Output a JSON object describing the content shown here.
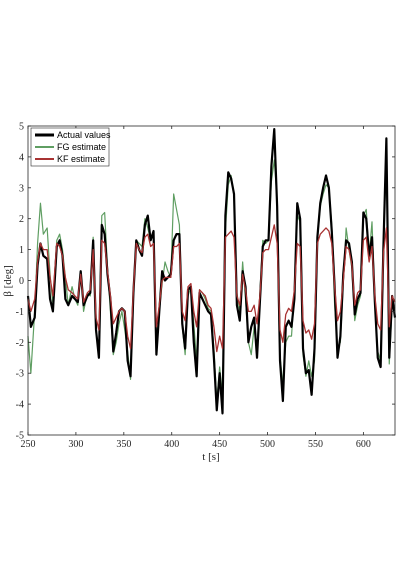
{
  "chart_data": {
    "type": "line",
    "xlabel": "t [s]",
    "ylabel": "β [deg]",
    "xlim": [
      250,
      633
    ],
    "ylim": [
      -5,
      5
    ],
    "xticks": [
      250,
      300,
      350,
      400,
      450,
      500,
      550,
      600
    ],
    "yticks": [
      -5,
      -4,
      -3,
      -2,
      -1,
      0,
      1,
      2,
      3,
      4,
      5
    ],
    "grid": false,
    "legend_position": "top-left",
    "series": [
      {
        "name": "Actual values",
        "color": "#000000",
        "x": [
          250,
          253,
          257,
          260,
          263,
          266,
          270,
          273,
          276,
          280,
          283,
          286,
          289,
          292,
          296,
          299,
          302,
          305,
          308,
          312,
          315,
          318,
          321,
          324,
          327,
          330,
          333,
          336,
          339,
          342,
          345,
          348,
          351,
          354,
          357,
          360,
          363,
          366,
          369,
          372,
          375,
          378,
          381,
          384,
          387,
          390,
          393,
          396,
          399,
          402,
          405,
          408,
          411,
          414,
          417,
          420,
          423,
          426,
          429,
          432,
          435,
          438,
          441,
          444,
          447,
          450,
          453,
          456,
          459,
          462,
          465,
          468,
          471,
          474,
          477,
          480,
          483,
          486,
          489,
          492,
          495,
          498,
          501,
          504,
          507,
          510,
          513,
          516,
          519,
          522,
          525,
          528,
          531,
          534,
          537,
          540,
          543,
          546,
          549,
          552,
          555,
          558,
          561,
          564,
          567,
          570,
          573,
          576,
          579,
          582,
          585,
          588,
          591,
          594,
          597,
          600,
          603,
          606,
          609,
          612,
          615,
          618,
          621,
          624,
          627,
          630,
          633
        ],
        "y": [
          -0.5,
          -1.5,
          -1.2,
          0.5,
          1.2,
          0.8,
          0.7,
          -0.6,
          -1.0,
          1.1,
          1.3,
          0.8,
          -0.6,
          -0.8,
          -0.5,
          -0.6,
          -0.7,
          0.3,
          -0.8,
          -0.5,
          -0.4,
          1.3,
          -1.6,
          -2.5,
          1.8,
          1.5,
          0.2,
          -0.6,
          -2.3,
          -1.7,
          -1.0,
          -0.9,
          -1.0,
          -2.6,
          -3.1,
          -0.4,
          1.3,
          1.0,
          0.8,
          1.8,
          2.1,
          1.3,
          1.6,
          -2.4,
          -1.0,
          0.3,
          0.0,
          0.1,
          0.2,
          1.3,
          1.5,
          1.5,
          -1.4,
          -2.2,
          -0.3,
          -0.2,
          -2.0,
          -3.1,
          -0.4,
          -0.6,
          -0.8,
          -1.0,
          -1.1,
          -2.5,
          -4.2,
          -3.0,
          -4.3,
          2.1,
          3.5,
          3.3,
          2.8,
          -0.8,
          -1.3,
          0.3,
          -0.2,
          -2.0,
          -1.5,
          -1.2,
          -2.5,
          -0.7,
          1.1,
          1.3,
          1.3,
          3.7,
          4.9,
          2.4,
          -2.6,
          -3.9,
          -1.5,
          -1.3,
          -1.5,
          -0.6,
          2.5,
          2.0,
          -2.2,
          -3.0,
          -2.9,
          -3.7,
          -2.2,
          1.4,
          2.5,
          3.0,
          3.4,
          3.0,
          1.6,
          -0.2,
          -2.5,
          -1.8,
          0.2,
          1.3,
          1.2,
          0.6,
          -1.1,
          -0.6,
          -0.4,
          2.2,
          2.0,
          0.8,
          1.4,
          -0.7,
          -2.5,
          -2.8,
          1.2,
          4.6,
          -2.5,
          -0.5,
          -1.2
        ]
      },
      {
        "name": "FG estimate",
        "color": "#5f9e62",
        "x": [
          250,
          253,
          257,
          260,
          263,
          266,
          270,
          273,
          276,
          280,
          283,
          286,
          289,
          292,
          296,
          299,
          302,
          305,
          308,
          312,
          315,
          318,
          321,
          324,
          327,
          330,
          333,
          336,
          339,
          342,
          345,
          348,
          351,
          354,
          357,
          360,
          363,
          366,
          369,
          372,
          375,
          378,
          381,
          384,
          387,
          390,
          393,
          396,
          399,
          402,
          405,
          408,
          411,
          414,
          417,
          420,
          423,
          426,
          429,
          432,
          435,
          438,
          441,
          444,
          447,
          450,
          453,
          456,
          459,
          462,
          465,
          468,
          471,
          474,
          477,
          480,
          483,
          486,
          489,
          492,
          495,
          498,
          501,
          504,
          507,
          510,
          513,
          516,
          519,
          522,
          525,
          528,
          531,
          534,
          537,
          540,
          543,
          546,
          549,
          552,
          555,
          558,
          561,
          564,
          567,
          570,
          573,
          576,
          579,
          582,
          585,
          588,
          591,
          594,
          597,
          600,
          603,
          606,
          609,
          612,
          615,
          618,
          621,
          624,
          627,
          630,
          633
        ],
        "y": [
          -1.8,
          -3.0,
          -1.0,
          1.2,
          2.5,
          1.5,
          1.7,
          0.2,
          -0.8,
          1.3,
          1.5,
          1.0,
          0.1,
          -0.8,
          -0.2,
          -0.6,
          -0.8,
          0.3,
          -1.0,
          -0.4,
          -0.5,
          1.4,
          -1.7,
          -2.2,
          2.1,
          2.2,
          0.4,
          -1.0,
          -2.4,
          -2.0,
          -1.4,
          -1.0,
          -1.6,
          -2.3,
          -3.2,
          -0.5,
          1.3,
          1.2,
          1.1,
          2.0,
          1.7,
          1.3,
          1.5,
          -2.0,
          -1.0,
          -0.1,
          0.6,
          0.3,
          0.1,
          2.8,
          2.3,
          1.8,
          -1.5,
          -2.4,
          -0.5,
          -0.2,
          -1.4,
          -2.6,
          -0.3,
          -0.4,
          -0.6,
          -0.9,
          -1.0,
          -2.2,
          -3.9,
          -2.8,
          -3.7,
          1.6,
          3.1,
          3.4,
          2.7,
          -0.4,
          -1.0,
          0.6,
          -0.6,
          -2.0,
          -2.4,
          -1.5,
          -2.3,
          -0.4,
          1.3,
          1.2,
          1.3,
          3.2,
          3.9,
          2.6,
          -2.4,
          -3.4,
          -2.0,
          -1.8,
          -1.8,
          -0.4,
          2.1,
          1.9,
          -2.4,
          -3.1,
          -2.6,
          -3.1,
          -2.6,
          1.3,
          2.4,
          2.8,
          3.1,
          3.0,
          1.8,
          -0.8,
          -2.2,
          -2.0,
          -0.1,
          1.7,
          1.0,
          0.4,
          -1.3,
          -0.8,
          -0.5,
          2.1,
          2.3,
          0.8,
          1.9,
          -0.7,
          -2.3,
          -2.6,
          1.3,
          3.9,
          -2.7,
          -0.8,
          -0.9
        ]
      },
      {
        "name": "KF estimate",
        "color": "#a83232",
        "x": [
          250,
          253,
          257,
          260,
          263,
          266,
          270,
          273,
          276,
          280,
          283,
          286,
          289,
          292,
          296,
          299,
          302,
          305,
          308,
          312,
          315,
          318,
          321,
          324,
          327,
          330,
          333,
          336,
          339,
          342,
          345,
          348,
          351,
          354,
          357,
          360,
          363,
          366,
          369,
          372,
          375,
          378,
          381,
          384,
          387,
          390,
          393,
          396,
          399,
          402,
          405,
          408,
          411,
          414,
          417,
          420,
          423,
          426,
          429,
          432,
          435,
          438,
          441,
          444,
          447,
          450,
          453,
          456,
          459,
          462,
          465,
          468,
          471,
          474,
          477,
          480,
          483,
          486,
          489,
          492,
          495,
          498,
          501,
          504,
          507,
          510,
          513,
          516,
          519,
          522,
          525,
          528,
          531,
          534,
          537,
          540,
          543,
          546,
          549,
          552,
          555,
          558,
          561,
          564,
          567,
          570,
          573,
          576,
          579,
          582,
          585,
          588,
          591,
          594,
          597,
          600,
          603,
          606,
          609,
          612,
          615,
          618,
          621,
          624,
          627,
          630,
          633
        ],
        "y": [
          -0.6,
          -1.0,
          -0.6,
          0.6,
          1.2,
          1.0,
          1.0,
          0.1,
          -0.5,
          1.2,
          1.1,
          0.8,
          0.1,
          -0.3,
          -0.4,
          -0.5,
          -0.6,
          0.2,
          -0.7,
          -0.4,
          -0.3,
          1.0,
          -1.2,
          -1.6,
          1.3,
          1.2,
          0.3,
          -0.5,
          -1.4,
          -1.2,
          -1.0,
          -0.9,
          -1.0,
          -1.8,
          -2.2,
          -0.3,
          1.2,
          1.0,
          0.9,
          1.4,
          1.5,
          1.1,
          1.2,
          -1.5,
          -0.8,
          0.0,
          0.1,
          0.1,
          0.1,
          1.1,
          1.1,
          1.2,
          -1.0,
          -1.3,
          -0.2,
          -0.1,
          -1.0,
          -1.5,
          -0.3,
          -0.4,
          -0.5,
          -0.8,
          -0.9,
          -1.5,
          -2.3,
          -1.8,
          -2.2,
          1.4,
          1.5,
          1.6,
          1.4,
          -0.5,
          -0.8,
          0.2,
          -0.3,
          -1.0,
          -1.0,
          -0.8,
          -1.4,
          -0.5,
          0.9,
          1.0,
          1.0,
          1.4,
          1.8,
          1.2,
          -1.6,
          -2.0,
          -1.1,
          -0.9,
          -1.0,
          -0.3,
          1.2,
          1.1,
          -1.3,
          -1.7,
          -1.6,
          -1.9,
          -1.4,
          1.2,
          1.5,
          1.6,
          1.7,
          1.6,
          1.2,
          -0.2,
          -1.3,
          -1.0,
          0.0,
          1.1,
          1.0,
          0.5,
          -0.8,
          -0.4,
          -0.3,
          1.3,
          1.4,
          0.6,
          1.1,
          -0.5,
          -1.4,
          -1.6,
          0.9,
          1.7,
          -1.5,
          -0.5,
          -0.7
        ]
      }
    ]
  }
}
